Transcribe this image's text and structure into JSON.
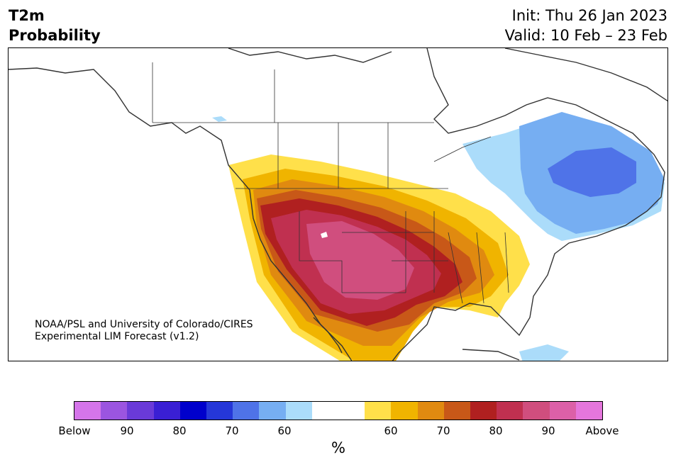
{
  "title": {
    "left_line1": "T2m",
    "left_line2": "Probability",
    "init": "Init: Thu 26 Jan 2023",
    "valid": "Valid: 10 Feb – 23 Feb"
  },
  "credit": {
    "line1": "NOAA/PSL and University of Colorado/CIRES",
    "line2": "Experimental LIM Forecast (v1.2)"
  },
  "legend": {
    "unit": "%",
    "colors": [
      "#d575ea",
      "#9b55e0",
      "#6a3ad8",
      "#3a1fd4",
      "#0000cc",
      "#2537d8",
      "#4f73e8",
      "#76aef2",
      "#abdcfa",
      "#ffffff",
      "#ffffff",
      "#ffe04a",
      "#f0b400",
      "#e08a10",
      "#c85818",
      "#b02020",
      "#c03050",
      "#d04e7e",
      "#dc60a8",
      "#e576dc"
    ],
    "tick_labels": [
      "Below",
      "90",
      "80",
      "70",
      "60",
      "60",
      "70",
      "80",
      "90",
      "Above"
    ]
  },
  "map": {
    "colors": {
      "cold_light": "#abdcfa",
      "cold_mid": "#76aef2",
      "cold_dark": "#4f73e8",
      "warm_yellow": "#ffe04a",
      "warm_gold": "#f0b400",
      "warm_orange": "#e08a10",
      "warm_rust": "#c85818",
      "warm_red": "#b02020",
      "warm_crimson": "#c03050",
      "warm_pink": "#d04e7e",
      "land_line": "#333333"
    }
  }
}
